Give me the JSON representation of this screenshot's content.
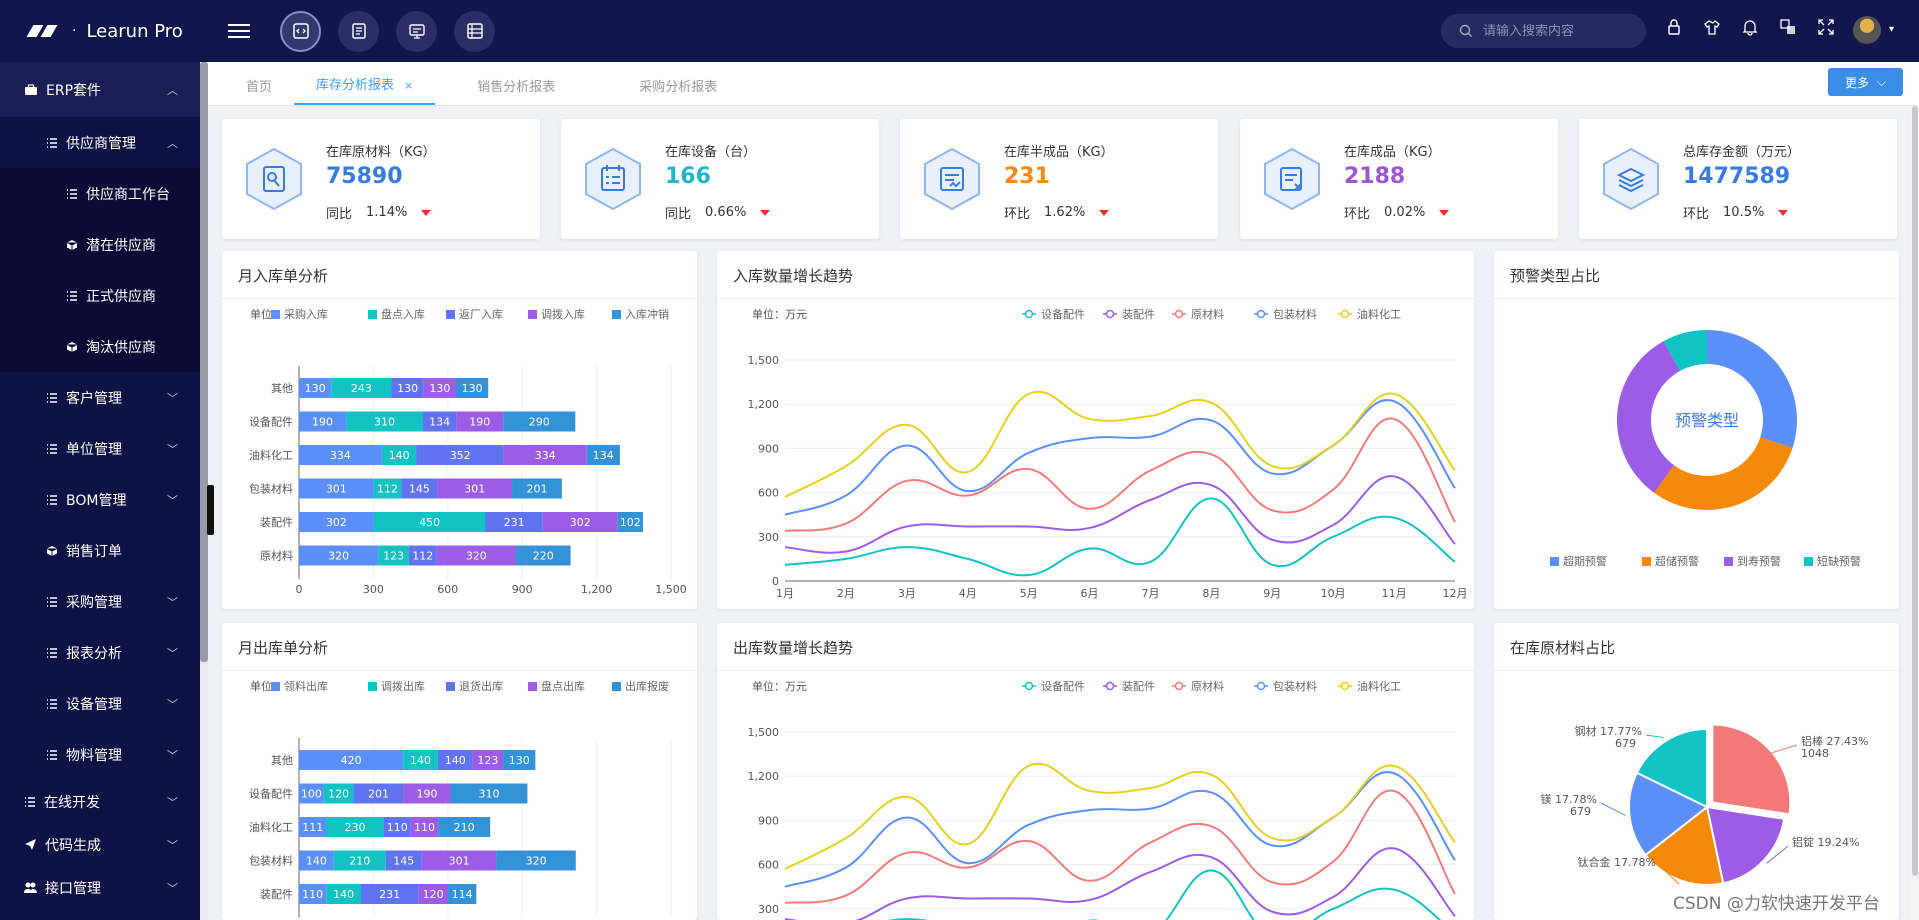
{
  "app": {
    "name": "Learun Pro",
    "logo_dot": "·"
  },
  "header": {
    "search_placeholder": "请输入搜索内容"
  },
  "sidebar": {
    "top": {
      "label": "ERP套件"
    },
    "items": [
      {
        "label": "供应商管理",
        "level": 1,
        "icon": "list-icon",
        "chev": "up"
      },
      {
        "label": "供应商工作台",
        "level": 2,
        "icon": "list-icon"
      },
      {
        "label": "潜在供应商",
        "level": 2,
        "icon": "cube-icon"
      },
      {
        "label": "正式供应商",
        "level": 2,
        "icon": "list-icon"
      },
      {
        "label": "淘汰供应商",
        "level": 2,
        "icon": "cube-icon"
      },
      {
        "label": "客户管理",
        "level": 1,
        "icon": "list-icon",
        "chev": "down"
      },
      {
        "label": "单位管理",
        "level": 1,
        "icon": "list-icon",
        "chev": "down"
      },
      {
        "label": "BOM管理",
        "level": 1,
        "icon": "list-icon",
        "chev": "down"
      },
      {
        "label": "销售订单",
        "level": 1,
        "icon": "cube-icon"
      },
      {
        "label": "采购管理",
        "level": 1,
        "icon": "list-icon",
        "chev": "down"
      },
      {
        "label": "报表分析",
        "level": 1,
        "icon": "list-icon",
        "chev": "down"
      },
      {
        "label": "设备管理",
        "level": 1,
        "icon": "list-icon",
        "chev": "down"
      },
      {
        "label": "物料管理",
        "level": 1,
        "icon": "list-icon",
        "chev": "down"
      },
      {
        "label": "在线开发",
        "level": 0,
        "icon": "list-icon",
        "chev": "down"
      },
      {
        "label": "代码生成",
        "level": 0,
        "icon": "send-icon",
        "chev": "down"
      },
      {
        "label": "接口管理",
        "level": 0,
        "icon": "users-icon",
        "chev": "down"
      }
    ]
  },
  "tabs": [
    {
      "label": "首页",
      "active": false
    },
    {
      "label": "库存分析报表",
      "active": true,
      "close": "×"
    },
    {
      "label": "销售分析报表",
      "active": false
    },
    {
      "label": "采购分析报表",
      "active": false
    }
  ],
  "more_label": "更多",
  "stats": [
    {
      "label": "在库原材料（KG）",
      "value": "75890",
      "color": "#3a7be0",
      "cmp_label": "同比",
      "cmp_value": "1.14%"
    },
    {
      "label": "在库设备（台）",
      "value": "166",
      "color": "#1fb6c8",
      "cmp_label": "同比",
      "cmp_value": "0.66%"
    },
    {
      "label": "在库半成品（KG）",
      "value": "231",
      "color": "#f58a0a",
      "cmp_label": "环比",
      "cmp_value": "1.62%"
    },
    {
      "label": "在库成品（KG）",
      "value": "2188",
      "color": "#9b59d0",
      "cmp_label": "环比",
      "cmp_value": "0.02%"
    },
    {
      "label": "总库存金额（万元）",
      "value": "1477589",
      "color": "#3a7be0",
      "cmp_label": "环比",
      "cmp_value": "10.5%"
    }
  ],
  "panels": {
    "in_bar": "月入库单分析",
    "in_line": "入库数量增长趋势",
    "warn_pie": "预警类型占比",
    "out_bar": "月出库单分析",
    "out_line": "出库数量增长趋势",
    "raw_pie": "在库原材料占比"
  },
  "unit_label": "单位：",
  "unit_wan": "单位：万元",
  "colors": {
    "c1": "#5b8ff9",
    "c2": "#13c2c2",
    "c3": "#6073f0",
    "c4": "#9d5ce6",
    "c5": "#3392d8"
  },
  "chart_data": [
    {
      "id": "in_bar",
      "type": "bar",
      "orientation": "horizontal",
      "stacked": true,
      "categories": [
        "其他",
        "设备配件",
        "油料化工",
        "包装材料",
        "装配件",
        "原材料"
      ],
      "series": [
        {
          "name": "采购入库",
          "values": [
            130,
            190,
            334,
            301,
            302,
            320
          ]
        },
        {
          "name": "盘点入库",
          "values": [
            243,
            310,
            140,
            112,
            450,
            123
          ]
        },
        {
          "name": "返厂入库",
          "values": [
            130,
            134,
            352,
            145,
            231,
            112
          ]
        },
        {
          "name": "调拨入库",
          "values": [
            130,
            190,
            334,
            301,
            302,
            320
          ]
        },
        {
          "name": "入库冲销",
          "values": [
            130,
            290,
            134,
            201,
            102,
            220
          ]
        }
      ],
      "xlim": [
        0,
        1500
      ],
      "xticks": [
        "0",
        "300",
        "600",
        "900",
        "1,200",
        "1,500"
      ]
    },
    {
      "id": "in_line",
      "type": "line",
      "smooth": true,
      "x": [
        "1月",
        "2月",
        "3月",
        "4月",
        "5月",
        "6月",
        "7月",
        "8月",
        "9月",
        "10月",
        "11月",
        "12月"
      ],
      "series": [
        {
          "name": "设备配件",
          "color": "#13c2c2",
          "values": [
            110,
            150,
            230,
            150,
            40,
            220,
            130,
            560,
            110,
            300,
            430,
            130
          ]
        },
        {
          "name": "装配件",
          "color": "#9d5ce6",
          "values": [
            230,
            200,
            370,
            370,
            370,
            360,
            550,
            650,
            280,
            380,
            710,
            250
          ]
        },
        {
          "name": "原材料",
          "color": "#f47a7a",
          "values": [
            340,
            390,
            680,
            580,
            760,
            490,
            750,
            860,
            480,
            620,
            1100,
            400
          ]
        },
        {
          "name": "包装材料",
          "color": "#5b8ff9",
          "values": [
            450,
            580,
            920,
            610,
            870,
            970,
            980,
            1090,
            730,
            920,
            1220,
            630
          ]
        },
        {
          "name": "油料化工",
          "color": "#e6d11e",
          "values": [
            570,
            780,
            1060,
            740,
            1270,
            1100,
            1120,
            1210,
            780,
            920,
            1270,
            750
          ]
        }
      ],
      "ylim": [
        0,
        1500
      ],
      "yticks": [
        "0",
        "300",
        "600",
        "900",
        "1,200",
        "1,500"
      ]
    },
    {
      "id": "warn_pie",
      "type": "pie",
      "donut": true,
      "center_label": "预警类型",
      "labels": [
        "超期预警",
        "超储预警",
        "到寿预警",
        "短缺预警"
      ],
      "values": [
        30,
        30,
        32,
        8
      ],
      "colors": [
        "#5b8ff9",
        "#f58a0a",
        "#9d5ce6",
        "#13c2c2"
      ]
    },
    {
      "id": "out_bar",
      "type": "bar",
      "orientation": "horizontal",
      "stacked": true,
      "categories": [
        "其他",
        "设备配件",
        "油料化工",
        "包装材料",
        "装配件"
      ],
      "series": [
        {
          "name": "领料出库",
          "values": [
            420,
            100,
            111,
            140,
            110
          ]
        },
        {
          "name": "调拨出库",
          "values": [
            140,
            120,
            230,
            210,
            140
          ]
        },
        {
          "name": "退货出库",
          "values": [
            140,
            201,
            110,
            145,
            231
          ]
        },
        {
          "name": "盘点出库",
          "values": [
            123,
            190,
            110,
            301,
            120
          ]
        },
        {
          "name": "出库报废",
          "values": [
            130,
            310,
            210,
            320,
            114
          ]
        }
      ],
      "xlim": [
        0,
        1500
      ]
    },
    {
      "id": "out_line",
      "type": "line",
      "smooth": true,
      "x": [
        "1月",
        "2月",
        "3月",
        "4月",
        "5月",
        "6月",
        "7月",
        "8月",
        "9月",
        "10月",
        "11月",
        "12月"
      ],
      "series": [
        {
          "name": "设备配件",
          "color": "#13c2c2",
          "values": [
            110,
            150,
            230,
            150,
            40,
            220,
            130,
            560,
            110,
            300,
            430,
            130
          ]
        },
        {
          "name": "装配件",
          "color": "#9d5ce6",
          "values": [
            230,
            200,
            370,
            370,
            370,
            360,
            550,
            650,
            280,
            380,
            710,
            250
          ]
        },
        {
          "name": "原材料",
          "color": "#f47a7a",
          "values": [
            340,
            390,
            680,
            580,
            760,
            490,
            750,
            860,
            480,
            620,
            1100,
            400
          ]
        },
        {
          "name": "包装材料",
          "color": "#5b8ff9",
          "values": [
            450,
            580,
            920,
            610,
            870,
            970,
            980,
            1090,
            730,
            920,
            1220,
            630
          ]
        },
        {
          "name": "油料化工",
          "color": "#e6d11e",
          "values": [
            570,
            780,
            1060,
            740,
            1270,
            1100,
            1120,
            1210,
            780,
            920,
            1270,
            750
          ]
        }
      ],
      "ylim": [
        0,
        1500
      ],
      "yticks": [
        "300",
        "600",
        "900",
        "1,200",
        "1,500"
      ]
    },
    {
      "id": "raw_pie",
      "type": "pie",
      "labels": [
        "铝棒",
        "铝锭",
        "钛合金",
        "镁",
        "钢材"
      ],
      "values": [
        27.43,
        19.24,
        17.78,
        17.78,
        17.77
      ],
      "label_texts": [
        "铝棒 27.43%",
        "铝锭 19.24%",
        "钛合金 17.78%",
        "镁 17.78%",
        "钢材 17.77%"
      ],
      "counts": [
        "1048",
        "",
        "",
        "679",
        "679"
      ],
      "colors": [
        "#f47a7a",
        "#9d5ce6",
        "#f58a0a",
        "#5b8ff9",
        "#13c2c2"
      ]
    }
  ],
  "watermark": "CSDN @力软快速开发平台"
}
